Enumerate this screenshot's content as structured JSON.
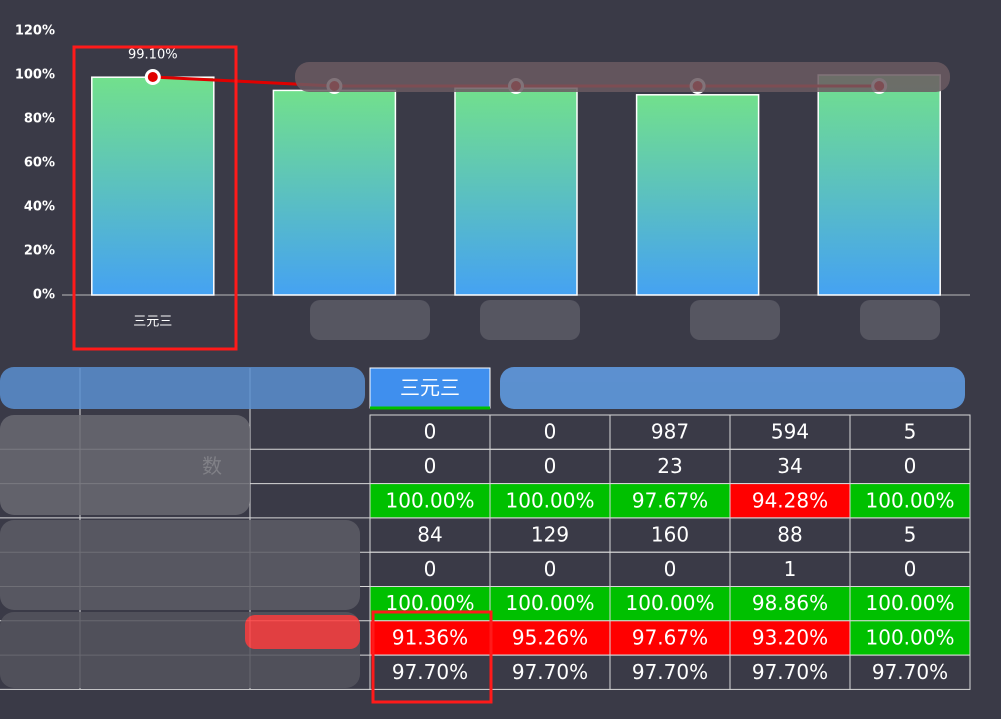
{
  "chart_data": {
    "type": "bar",
    "categories": [
      "三元三",
      null,
      null,
      null,
      null
    ],
    "values": [
      99,
      93,
      94,
      91,
      100
    ],
    "color_top": "#72e08c",
    "color_bottom": "#45a2f2",
    "ylim": [
      0,
      120
    ],
    "yticks": [
      {
        "value": 0,
        "label": "0%"
      },
      {
        "value": 20,
        "label": "20%"
      },
      {
        "value": 40,
        "label": "40%"
      },
      {
        "value": 60,
        "label": "60%"
      },
      {
        "value": 80,
        "label": "80%"
      },
      {
        "value": 100,
        "label": "100%"
      },
      {
        "value": 120,
        "label": "120%"
      }
    ],
    "series": [
      {
        "type": "line",
        "color": "#e00000",
        "values": [
          99.1,
          95,
          95,
          95,
          95
        ],
        "value_labels": [
          "99.10%",
          null,
          null,
          null,
          null
        ]
      }
    ]
  },
  "table": {
    "header": "三元三",
    "rows": [
      {
        "cells": [
          "0",
          "0",
          "987",
          "594",
          "5"
        ],
        "fills": [
          null,
          null,
          null,
          null,
          null
        ]
      },
      {
        "label": "数",
        "cells": [
          "0",
          "0",
          "23",
          "34",
          "0"
        ],
        "fills": [
          null,
          null,
          null,
          null,
          null
        ]
      },
      {
        "cells": [
          "100.00%",
          "100.00%",
          "97.67%",
          "94.28%",
          "100.00%"
        ],
        "fills": [
          "#00c000",
          "#00c000",
          "#00c000",
          "#ff0000",
          "#00c000"
        ]
      },
      {
        "cells": [
          "84",
          "129",
          "160",
          "88",
          "5"
        ],
        "fills": [
          null,
          null,
          null,
          null,
          null
        ]
      },
      {
        "cells": [
          "0",
          "0",
          "0",
          "1",
          "0"
        ],
        "fills": [
          null,
          null,
          null,
          null,
          null
        ]
      },
      {
        "cells": [
          "100.00%",
          "100.00%",
          "100.00%",
          "98.86%",
          "100.00%"
        ],
        "fills": [
          "#00c000",
          "#00c000",
          "#00c000",
          "#00c000",
          "#00c000"
        ]
      },
      {
        "cells": [
          "91.36%",
          "95.26%",
          "97.67%",
          "93.20%",
          "100.00%"
        ],
        "fills": [
          "#ff0000",
          "#ff0000",
          "#ff0000",
          "#ff0000",
          "#00c000"
        ]
      },
      {
        "cells": [
          "97.70%",
          "97.70%",
          "97.70%",
          "97.70%",
          "97.70%"
        ],
        "fills": [
          null,
          null,
          null,
          null,
          null
        ]
      }
    ]
  }
}
